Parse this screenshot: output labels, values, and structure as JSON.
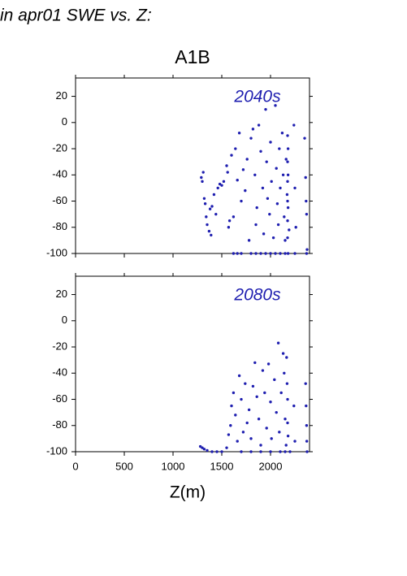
{
  "title": "in apr01 SWE vs. Z:",
  "subtitle": "A1B",
  "chart_data": [
    {
      "type": "scatter",
      "annotation": "2040s",
      "color": "#1f1fb0",
      "xlim": [
        0,
        2400
      ],
      "ylim": [
        -100,
        34
      ],
      "xticks": [
        0,
        500,
        1000,
        1500,
        2000
      ],
      "yticks": [
        -100,
        -80,
        -60,
        -40,
        -20,
        0,
        20
      ],
      "x": [
        1290,
        1310,
        1300,
        1320,
        1330,
        1340,
        1350,
        1370,
        1390,
        1380,
        1400,
        1420,
        1440,
        1460,
        1480,
        1500,
        1520,
        1550,
        1560,
        1570,
        1580,
        1600,
        1620,
        1640,
        1660,
        1680,
        1700,
        1720,
        1740,
        1760,
        1780,
        1800,
        1820,
        1840,
        1850,
        1860,
        1880,
        1900,
        1920,
        1930,
        1950,
        1960,
        1970,
        1990,
        2000,
        2010,
        2030,
        2050,
        2060,
        2070,
        2080,
        2090,
        2100,
        2120,
        2130,
        2140,
        2150,
        2160,
        2170,
        2180,
        2190,
        2240,
        2250,
        2260,
        2350,
        2360,
        2365,
        2370,
        2375,
        1620,
        1660,
        1700,
        1800,
        1850,
        1900,
        1950,
        2000,
        2050,
        2100,
        2150,
        2180,
        2250,
        2370,
        2175,
        2175,
        2175,
        2175,
        2175,
        2175,
        2180,
        2180
      ],
      "y": [
        -42,
        -38,
        -45,
        -58,
        -62,
        -72,
        -78,
        -83,
        -86,
        -66,
        -64,
        -55,
        -70,
        -50,
        -47,
        -48,
        -45,
        -33,
        -38,
        -80,
        -75,
        -25,
        -72,
        -20,
        -44,
        -8,
        -60,
        -36,
        -52,
        -28,
        -90,
        -12,
        -5,
        -40,
        -78,
        -65,
        -2,
        -22,
        -50,
        -85,
        10,
        -30,
        -58,
        -70,
        -15,
        -45,
        -88,
        13,
        -35,
        -62,
        -78,
        -20,
        -50,
        -8,
        -40,
        -72,
        -90,
        -28,
        -55,
        -65,
        -82,
        -2,
        -50,
        -80,
        -12,
        -42,
        -60,
        -70,
        -97,
        -100,
        -100,
        -100,
        -100,
        -100,
        -100,
        -100,
        -100,
        -100,
        -100,
        -100,
        -100,
        -100,
        -100,
        -10,
        -30,
        -45,
        -60,
        -75,
        -88,
        -20,
        -40
      ]
    },
    {
      "type": "scatter",
      "annotation": "2080s",
      "color": "#1f1fb0",
      "xlabel": "Z(m)",
      "xlim": [
        0,
        2400
      ],
      "ylim": [
        -100,
        34
      ],
      "xticks": [
        0,
        500,
        1000,
        1500,
        2000
      ],
      "yticks": [
        -100,
        -80,
        -60,
        -40,
        -20,
        0,
        20
      ],
      "x": [
        1280,
        1300,
        1320,
        1350,
        1400,
        1450,
        1500,
        1550,
        1570,
        1590,
        1600,
        1620,
        1640,
        1660,
        1680,
        1700,
        1720,
        1740,
        1760,
        1780,
        1800,
        1820,
        1840,
        1860,
        1880,
        1900,
        1920,
        1940,
        1960,
        1980,
        2000,
        2010,
        2040,
        2060,
        2080,
        2090,
        2110,
        2130,
        2140,
        2150,
        2160,
        2165,
        2170,
        2175,
        2175,
        2180,
        2240,
        2250,
        2360,
        2365,
        2370,
        2372,
        2375,
        1700,
        1800,
        1900,
        2000,
        2100,
        2150,
        2200
      ],
      "y": [
        -96,
        -97,
        -98,
        -99,
        -100,
        -100,
        -100,
        -97,
        -87,
        -80,
        -65,
        -55,
        -72,
        -92,
        -42,
        -60,
        -85,
        -48,
        -78,
        -68,
        -90,
        -50,
        -32,
        -58,
        -75,
        -95,
        -38,
        -55,
        -82,
        -33,
        -62,
        -90,
        -45,
        -70,
        -17,
        -85,
        -55,
        -25,
        -40,
        -75,
        -95,
        -28,
        -48,
        -60,
        -78,
        -88,
        -65,
        -92,
        -48,
        -65,
        -80,
        -92,
        -100,
        -100,
        -100,
        -100,
        -100,
        -100,
        -100,
        -100
      ]
    }
  ]
}
